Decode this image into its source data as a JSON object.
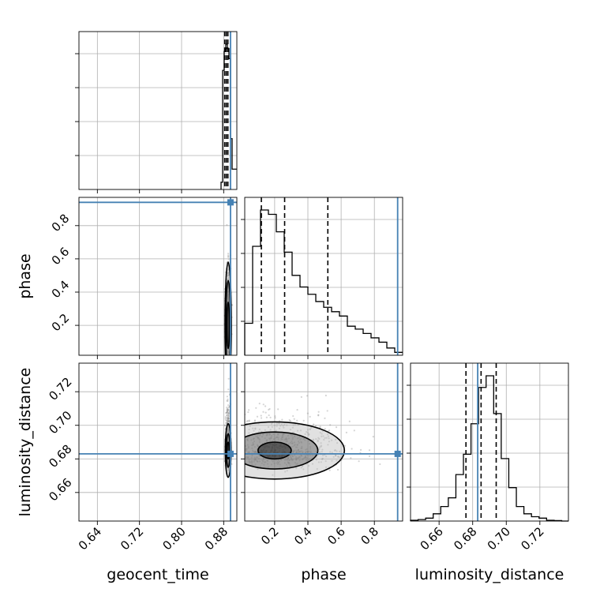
{
  "chart_data": {
    "type": "corner",
    "parameters": [
      "geocent_time",
      "phase",
      "luminosity_distance"
    ],
    "axis_labels": {
      "geocent_time": "geocent_time",
      "phase": "phase",
      "luminosity_distance": "luminosity_distance"
    },
    "ranges": {
      "geocent_time": [
        0.605,
        0.905
      ],
      "phase": [
        0.02,
        0.97
      ],
      "luminosity_distance": [
        0.643,
        0.737
      ]
    },
    "ticks": {
      "geocent_time": {
        "values": [
          0.64,
          0.72,
          0.8,
          0.88
        ],
        "labels": [
          "0.64",
          "0.72",
          "0.80",
          "0.88"
        ]
      },
      "phase": {
        "values": [
          0.2,
          0.4,
          0.6,
          0.8
        ],
        "labels": [
          "0.2",
          "0.4",
          "0.6",
          "0.8"
        ]
      },
      "luminosity_distance": {
        "values": [
          0.66,
          0.68,
          0.7,
          0.72
        ],
        "labels": [
          "0.66",
          "0.68",
          "0.70",
          "0.72"
        ]
      }
    },
    "truths": {
      "geocent_time": 0.893,
      "phase": 0.94,
      "luminosity_distance": 0.683
    },
    "truth_color": "#4682b4",
    "grid": true,
    "histograms": {
      "geocent_time": {
        "edges": [
          0.875,
          0.878,
          0.881,
          0.884,
          0.887,
          0.89,
          0.893,
          0.896,
          0.899,
          0.902,
          0.905
        ],
        "counts": [
          0.05,
          0.82,
          0.95,
          1.0,
          0.97,
          0.9,
          0.35,
          0.14,
          0.14,
          0.14
        ],
        "quantiles": [
          0.882,
          0.885,
          0.888
        ]
      },
      "phase": {
        "edges": [
          0.02,
          0.0675,
          0.115,
          0.1625,
          0.21,
          0.2575,
          0.305,
          0.3525,
          0.4,
          0.4475,
          0.495,
          0.5425,
          0.59,
          0.6375,
          0.685,
          0.7325,
          0.78,
          0.8275,
          0.875,
          0.9225,
          0.97
        ],
        "counts": [
          0.22,
          0.75,
          1.0,
          0.97,
          0.85,
          0.71,
          0.55,
          0.47,
          0.42,
          0.37,
          0.33,
          0.3,
          0.27,
          0.2,
          0.18,
          0.15,
          0.12,
          0.09,
          0.05,
          0.02
        ],
        "quantiles": [
          0.12,
          0.26,
          0.52
        ]
      },
      "luminosity_distance": {
        "edges": [
          0.643,
          0.6475,
          0.652,
          0.6565,
          0.661,
          0.6655,
          0.67,
          0.6745,
          0.679,
          0.6835,
          0.688,
          0.6925,
          0.697,
          0.7015,
          0.706,
          0.7105,
          0.715,
          0.7195,
          0.724,
          0.7285,
          0.733,
          0.737
        ],
        "counts": [
          0.005,
          0.01,
          0.02,
          0.05,
          0.1,
          0.16,
          0.32,
          0.46,
          0.67,
          0.92,
          1.0,
          0.74,
          0.43,
          0.23,
          0.1,
          0.05,
          0.03,
          0.02,
          0.005,
          0.003,
          0.0
        ],
        "quantiles": [
          0.676,
          0.685,
          0.694
        ]
      }
    },
    "joint": [
      {
        "x": "geocent_time",
        "y": "phase",
        "center": [
          0.8885,
          0.2
        ],
        "spread": [
          0.0022,
          0.11
        ],
        "levels": [
          {
            "rx": 0.0025,
            "ry": 0.14
          },
          {
            "rx": 0.0045,
            "ry": 0.27
          },
          {
            "rx": 0.006,
            "ry": 0.38
          }
        ]
      },
      {
        "x": "geocent_time",
        "y": "luminosity_distance",
        "center": [
          0.8885,
          0.685
        ],
        "spread": [
          0.0022,
          0.008
        ],
        "levels": [
          {
            "rx": 0.002,
            "ry": 0.005
          },
          {
            "rx": 0.0035,
            "ry": 0.01
          },
          {
            "rx": 0.0055,
            "ry": 0.016
          }
        ]
      },
      {
        "x": "phase",
        "y": "luminosity_distance",
        "center": [
          0.2,
          0.685
        ],
        "spread": [
          0.18,
          0.008
        ],
        "levels": [
          {
            "rx": 0.1,
            "ry": 0.005
          },
          {
            "rx": 0.26,
            "ry": 0.011
          },
          {
            "rx": 0.42,
            "ry": 0.017
          }
        ]
      }
    ]
  }
}
